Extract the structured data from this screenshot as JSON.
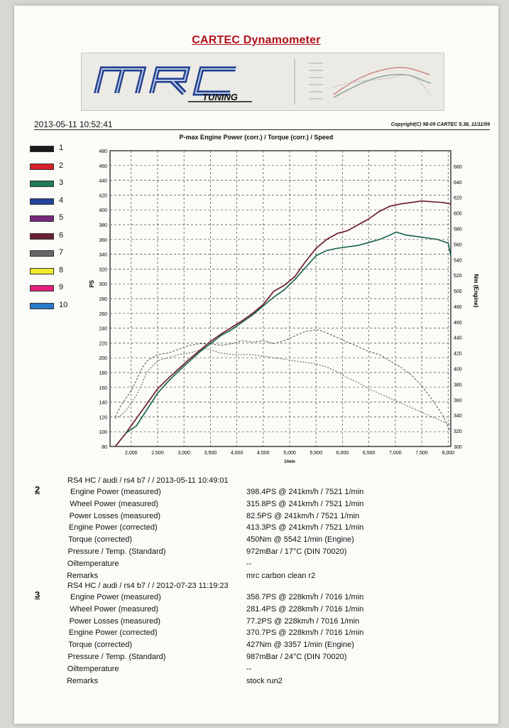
{
  "header": {
    "title": "CARTEC Dynamometer",
    "logo_text": "MRC",
    "logo_subtext": "TUNING",
    "datetime": "2013-05-11 10:52:41",
    "copyright": "Copyright(C) 98-09 CARTEC 5.38, 11/11/09"
  },
  "legend": [
    {
      "label": "1",
      "color": "#1a1a1a"
    },
    {
      "label": "2",
      "color": "#d8202a"
    },
    {
      "label": "3",
      "color": "#1f7a55"
    },
    {
      "label": "4",
      "color": "#23449a"
    },
    {
      "label": "5",
      "color": "#7a2a7a"
    },
    {
      "label": "6",
      "color": "#6a2230"
    },
    {
      "label": "7",
      "color": "#666666"
    },
    {
      "label": "8",
      "color": "#f2ec2a"
    },
    {
      "label": "9",
      "color": "#e0207a"
    },
    {
      "label": "10",
      "color": "#2a78c8"
    }
  ],
  "chart_data": {
    "type": "line",
    "title": "P-max Engine Power (corr.) / Torque (corr.) / Speed",
    "xlabel": "1/min",
    "ylabel": "PS",
    "y2label": "Nm (Engine)",
    "xlim": [
      1600,
      8050
    ],
    "ylim": [
      80,
      480
    ],
    "y2lim": [
      300,
      680
    ],
    "xticks": [
      2000,
      2500,
      3000,
      3500,
      4000,
      4500,
      5000,
      5500,
      6000,
      6500,
      7000,
      7500,
      8000
    ],
    "xtick_labels": [
      "2,000",
      "2,500",
      "3,000",
      "3,500",
      "4,000",
      "4,500",
      "5,000",
      "5,500",
      "6,000",
      "6,500",
      "7,000",
      "7,500",
      "8,000"
    ],
    "yticks": [
      80,
      100,
      120,
      140,
      160,
      180,
      200,
      220,
      240,
      260,
      280,
      300,
      320,
      340,
      360,
      380,
      400,
      420,
      440,
      460,
      480
    ],
    "y2ticks": [
      300,
      320,
      340,
      360,
      380,
      400,
      420,
      440,
      460,
      480,
      500,
      520,
      540,
      560,
      580,
      600,
      620,
      640,
      660
    ],
    "grid": true,
    "series": [
      {
        "name": "2",
        "kind": "power",
        "color": "#6e1f2a",
        "x": [
          1700,
          1900,
          2100,
          2300,
          2500,
          2700,
          2900,
          3100,
          3300,
          3500,
          3700,
          3900,
          4100,
          4300,
          4500,
          4700,
          4900,
          5100,
          5300,
          5500,
          5700,
          5900,
          6100,
          6300,
          6500,
          6700,
          6900,
          7100,
          7300,
          7500,
          7700,
          7900,
          8050
        ],
        "y": [
          80,
          98,
          118,
          138,
          158,
          172,
          185,
          198,
          210,
          222,
          232,
          241,
          250,
          260,
          272,
          290,
          298,
          310,
          330,
          348,
          360,
          368,
          372,
          380,
          388,
          398,
          405,
          408,
          410,
          412,
          411,
          410,
          408
        ]
      },
      {
        "name": "3",
        "kind": "power",
        "color": "#1f6a55",
        "x": [
          1900,
          2100,
          2300,
          2500,
          2700,
          2900,
          3100,
          3300,
          3500,
          3700,
          3900,
          4100,
          4300,
          4500,
          4700,
          4900,
          5100,
          5300,
          5500,
          5700,
          5900,
          6100,
          6300,
          6500,
          6700,
          6900,
          7016,
          7200,
          7400,
          7600,
          7800,
          8000,
          8050
        ],
        "y": [
          98,
          108,
          130,
          152,
          168,
          182,
          195,
          208,
          219,
          230,
          238,
          248,
          258,
          270,
          282,
          292,
          306,
          322,
          338,
          345,
          348,
          350,
          352,
          356,
          360,
          366,
          370,
          366,
          364,
          362,
          360,
          355,
          338
        ]
      },
      {
        "name": "2",
        "kind": "torque",
        "color": "#555555",
        "dash": "3,2",
        "x": [
          1700,
          1800,
          1900,
          2000,
          2100,
          2200,
          2300,
          2500,
          2700,
          2900,
          3100,
          3300,
          3500,
          3700,
          3900,
          4100,
          4300,
          4500,
          4700,
          4900,
          5100,
          5300,
          5542,
          5700,
          5900,
          6100,
          6300,
          6500,
          6700,
          6900,
          7100,
          7300,
          7500,
          7700,
          7900,
          8050
        ],
        "y": [
          338,
          352,
          362,
          372,
          385,
          400,
          410,
          418,
          420,
          425,
          430,
          432,
          432,
          430,
          432,
          436,
          434,
          436,
          432,
          436,
          442,
          448,
          450,
          446,
          440,
          434,
          428,
          422,
          418,
          410,
          402,
          392,
          378,
          360,
          340,
          318
        ]
      },
      {
        "name": "3",
        "kind": "torque",
        "color": "#555555",
        "dash": "2,2",
        "x": [
          1700,
          1800,
          1900,
          2000,
          2100,
          2200,
          2300,
          2500,
          2700,
          2900,
          3100,
          3300,
          3357,
          3500,
          3700,
          3900,
          4100,
          4300,
          4500,
          4700,
          4900,
          5100,
          5300,
          5500,
          5700,
          5900,
          6100,
          6300,
          6500,
          6700,
          6900,
          7100,
          7300,
          7500,
          7700,
          7900,
          8050
        ],
        "y": [
          336,
          340,
          346,
          356,
          366,
          380,
          396,
          410,
          414,
          418,
          420,
          424,
          427,
          424,
          420,
          418,
          418,
          418,
          416,
          414,
          412,
          410,
          408,
          406,
          402,
          396,
          388,
          382,
          374,
          368,
          362,
          356,
          350,
          344,
          338,
          332,
          328
        ]
      }
    ]
  },
  "runs": [
    {
      "number": "2",
      "header": "RS4 HC / audi / rs4 b7 /  / 2013-05-11 10:49:01",
      "rows": [
        {
          "label": "Engine Power (measured)",
          "value": "398.4PS @ 241km/h / 7521 1/min"
        },
        {
          "label": "Wheel Power (measured)",
          "value": "315.8PS @ 241km/h / 7521 1/min"
        },
        {
          "label": "Power Losses (measured)",
          "value": "82.5PS @ 241km/h / 7521 1/min"
        },
        {
          "label": "Engine Power (corrected)",
          "value": "413.3PS @ 241km/h / 7521 1/min"
        },
        {
          "label": "Torque (corrected)",
          "value": "450Nm @ 5542 1/min (Engine)"
        },
        {
          "label": "Pressure / Temp. (Standard)",
          "value": "972mBar / 17°C   (DIN 70020)"
        },
        {
          "label": "Oiltemperature",
          "value": "--"
        },
        {
          "label": "Remarks",
          "value": "mrc carbon clean r2"
        }
      ]
    },
    {
      "number": "3",
      "header": "RS4 HC / audi / rs4 b7 /  / 2012-07-23 11:19:23",
      "rows": [
        {
          "label": "Engine Power (measured)",
          "value": "358.7PS @ 228km/h / 7016 1/min"
        },
        {
          "label": "Wheel Power (measured)",
          "value": "281.4PS @ 228km/h / 7016 1/min"
        },
        {
          "label": "Power Losses (measured)",
          "value": "77.2PS @ 228km/h / 7016 1/min"
        },
        {
          "label": "Engine Power (corrected)",
          "value": "370.7PS @ 228km/h / 7016 1/min"
        },
        {
          "label": "Torque (corrected)",
          "value": "427Nm @ 3357 1/min (Engine)"
        },
        {
          "label": "Pressure / Temp. (Standard)",
          "value": "987mBar / 24°C   (DIN 70020)"
        },
        {
          "label": "Oiltemperature",
          "value": "--"
        },
        {
          "label": "Remarks",
          "value": "stock run2"
        }
      ]
    }
  ]
}
